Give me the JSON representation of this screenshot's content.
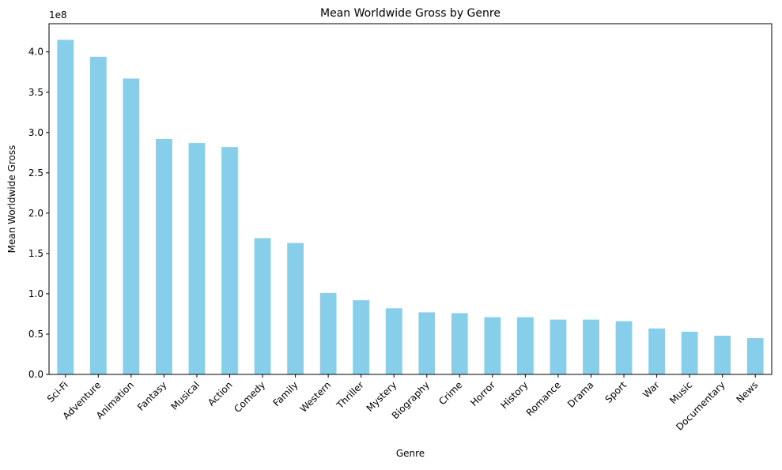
{
  "chart_data": {
    "type": "bar",
    "title": "Mean Worldwide Gross by Genre",
    "xlabel": "Genre",
    "ylabel": "Mean Worldwide Gross",
    "y_offset_label": "1e8",
    "ylim": [
      0,
      435000000
    ],
    "yticks": [
      0,
      50000000,
      100000000,
      150000000,
      200000000,
      250000000,
      300000000,
      350000000,
      400000000
    ],
    "ytick_labels": [
      "0.0",
      "0.5",
      "1.0",
      "1.5",
      "2.0",
      "2.5",
      "3.0",
      "3.5",
      "4.0"
    ],
    "categories": [
      "Sci-Fi",
      "Adventure",
      "Animation",
      "Fantasy",
      "Musical",
      "Action",
      "Comedy",
      "Family",
      "Western",
      "Thriller",
      "Mystery",
      "Biography",
      "Crime",
      "Horror",
      "History",
      "Romance",
      "Drama",
      "Sport",
      "War",
      "Music",
      "Documentary",
      "News"
    ],
    "values": [
      415000000,
      394000000,
      367000000,
      292000000,
      287000000,
      282000000,
      169000000,
      163000000,
      101000000,
      92000000,
      82000000,
      77000000,
      76000000,
      71000000,
      71000000,
      68000000,
      68000000,
      66000000,
      57000000,
      53000000,
      48000000,
      45000000
    ],
    "bar_color": "#87ceeb",
    "grid": false,
    "legend": "none"
  }
}
